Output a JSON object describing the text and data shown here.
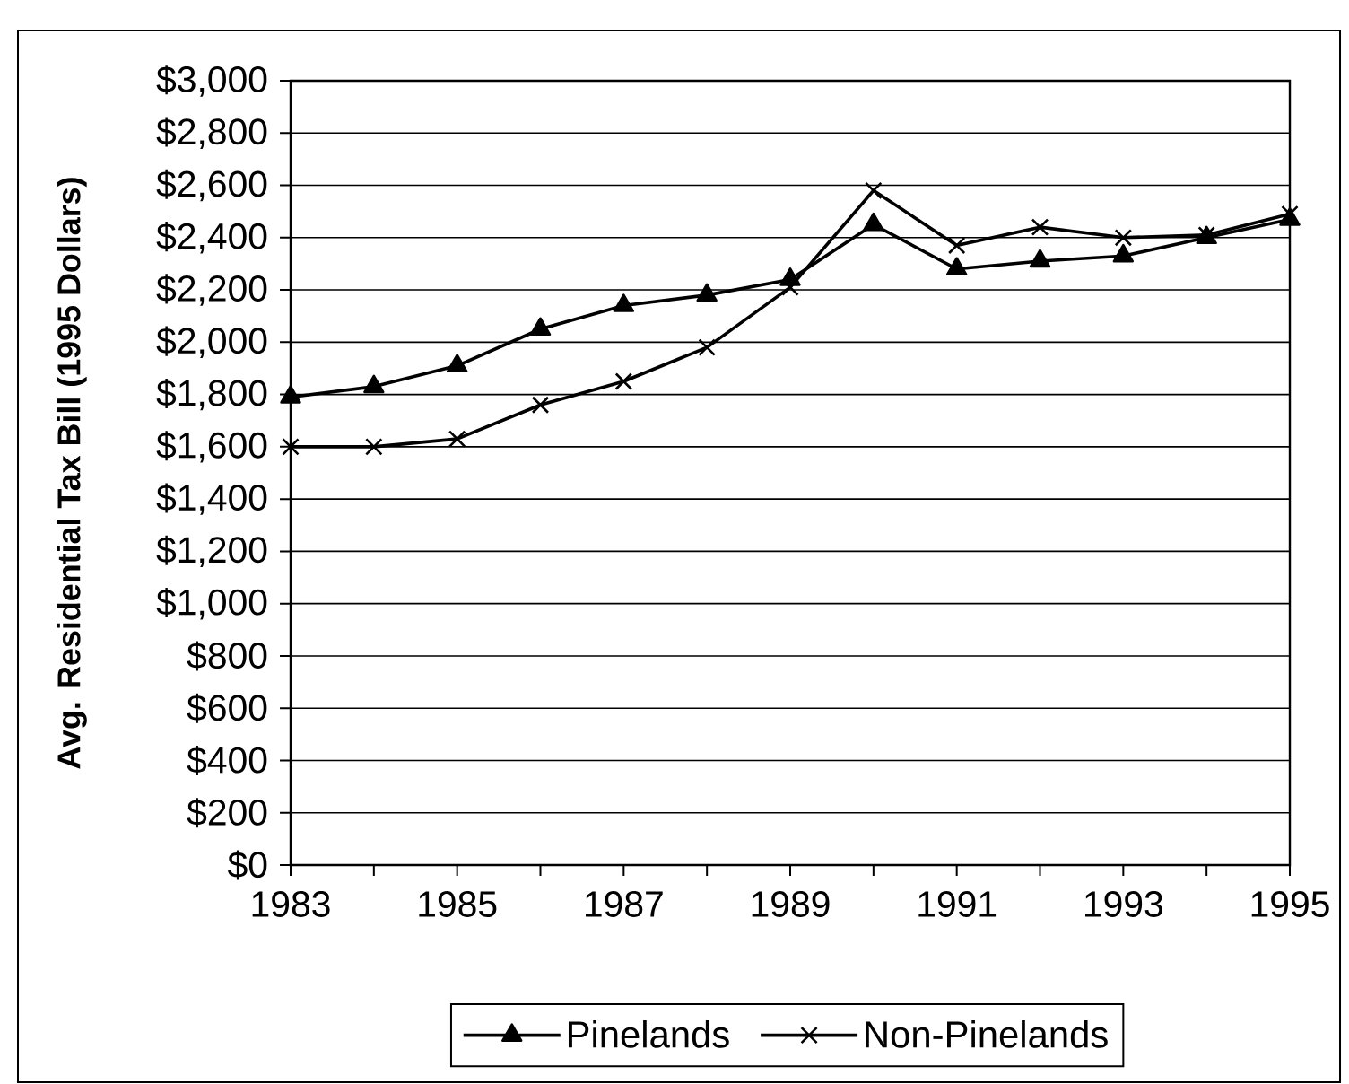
{
  "chart_data": {
    "type": "line",
    "ylabel": "Avg. Residential Tax Bill (1995 Dollars)",
    "x": [
      1983,
      1984,
      1985,
      1986,
      1987,
      1988,
      1989,
      1990,
      1991,
      1992,
      1993,
      1994,
      1995
    ],
    "series": [
      {
        "name": "Pinelands",
        "color": "#000000",
        "marker": "triangle",
        "values": [
          1790,
          1830,
          1910,
          2050,
          2140,
          2180,
          2240,
          2450,
          2280,
          2310,
          2330,
          2400,
          2470
        ]
      },
      {
        "name": "Non-Pinelands",
        "color": "#000000",
        "marker": "cross",
        "values": [
          1600,
          1600,
          1630,
          1760,
          1850,
          1980,
          2210,
          2580,
          2370,
          2440,
          2400,
          2410,
          2490
        ]
      }
    ],
    "xlim": [
      1983,
      1995
    ],
    "xticks": [
      1983,
      {
        "value": 1984,
        "label": null
      },
      1985,
      {
        "value": 1986,
        "label": null
      },
      1987,
      {
        "value": 1988,
        "label": null
      },
      1989,
      {
        "value": 1990,
        "label": null
      },
      1991,
      {
        "value": 1992,
        "label": null
      },
      1993,
      {
        "value": 1994,
        "label": null
      },
      1995
    ],
    "ylim": [
      0,
      3000
    ],
    "yticks": [
      {
        "value": 0,
        "label": "$0"
      },
      {
        "value": 200,
        "label": "$200"
      },
      {
        "value": 400,
        "label": "$400"
      },
      {
        "value": 600,
        "label": "$600"
      },
      {
        "value": 800,
        "label": "$800"
      },
      {
        "value": 1000,
        "label": "$1,000"
      },
      {
        "value": 1200,
        "label": "$1,200"
      },
      {
        "value": 1400,
        "label": "$1,400"
      },
      {
        "value": 1600,
        "label": "$1,600"
      },
      {
        "value": 1800,
        "label": "$1,800"
      },
      {
        "value": 2000,
        "label": "$2,000"
      },
      {
        "value": 2200,
        "label": "$2,200"
      },
      {
        "value": 2400,
        "label": "$2,400"
      },
      {
        "value": 2600,
        "label": "$2,600"
      },
      {
        "value": 2800,
        "label": "$2,800"
      },
      {
        "value": 3000,
        "label": "$3,000"
      }
    ],
    "grid": "y",
    "legend": "bottom",
    "line_style": "solid"
  }
}
